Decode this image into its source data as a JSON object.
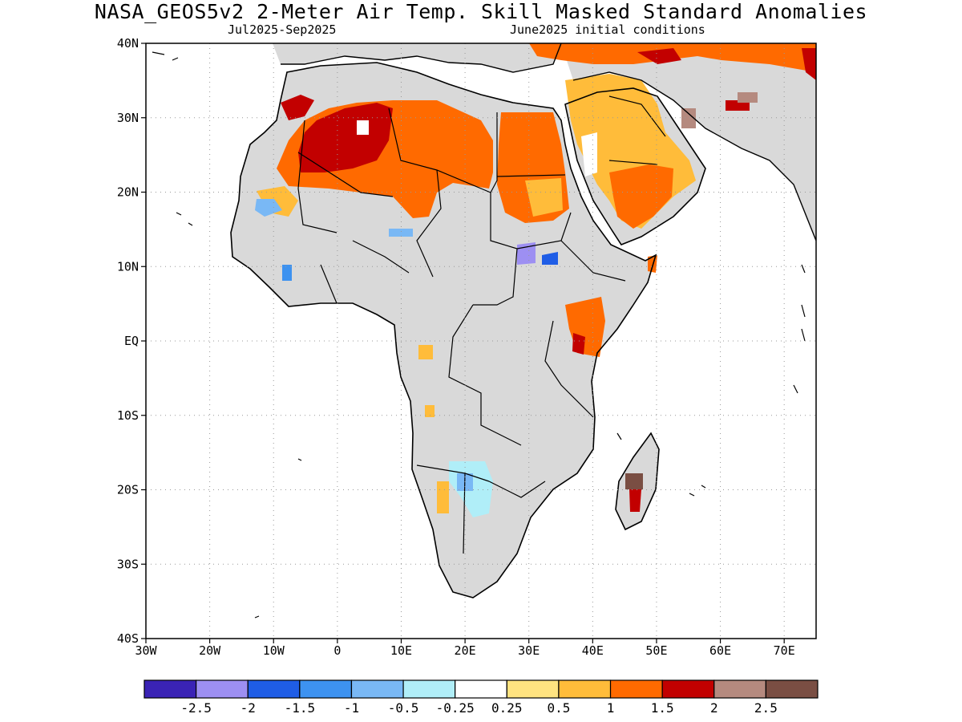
{
  "header": {
    "title": "NASA_GEOS5v2 2-Meter Air Temp. Skill Masked Standard Anomalies",
    "period": "Jul2025-Sep2025",
    "init": "June2025 initial conditions"
  },
  "map": {
    "lon_range": [
      -30,
      75
    ],
    "lat_range": [
      -40,
      40
    ],
    "lat_ticks": [
      {
        "value": 40,
        "label": "40N"
      },
      {
        "value": 30,
        "label": "30N"
      },
      {
        "value": 20,
        "label": "20N"
      },
      {
        "value": 10,
        "label": "10N"
      },
      {
        "value": 0,
        "label": "EQ"
      },
      {
        "value": -10,
        "label": "10S"
      },
      {
        "value": -20,
        "label": "20S"
      },
      {
        "value": -30,
        "label": "30S"
      },
      {
        "value": -40,
        "label": "40S"
      }
    ],
    "lon_ticks": [
      {
        "value": -30,
        "label": "30W"
      },
      {
        "value": -20,
        "label": "20W"
      },
      {
        "value": -10,
        "label": "10W"
      },
      {
        "value": 0,
        "label": "0"
      },
      {
        "value": 10,
        "label": "10E"
      },
      {
        "value": 20,
        "label": "20E"
      },
      {
        "value": 30,
        "label": "30E"
      },
      {
        "value": 40,
        "label": "40E"
      },
      {
        "value": 50,
        "label": "50E"
      },
      {
        "value": 60,
        "label": "60E"
      },
      {
        "value": 70,
        "label": "70E"
      }
    ],
    "masked_color": "#d9d9d9",
    "grid": true
  },
  "colorbar": {
    "colors": [
      "#3a23b5",
      "#9d8ff2",
      "#1f5de6",
      "#3d92f0",
      "#79b8f5",
      "#b0eef8",
      "#ffffff",
      "#ffe380",
      "#ffbc3a",
      "#ff6a00",
      "#c20000",
      "#b58a7f",
      "#7a4e43"
    ],
    "labels": [
      "-2.5",
      "-2",
      "-1.5",
      "-1",
      "-0.5",
      "-0.25",
      "0.25",
      "0.5",
      "1",
      "1.5",
      "2",
      "2.5"
    ]
  }
}
